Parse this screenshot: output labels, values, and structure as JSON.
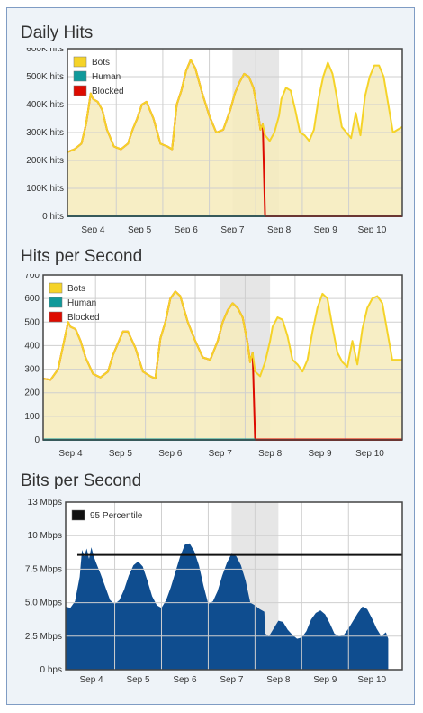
{
  "charts": [
    {
      "title": "Daily Hits"
    },
    {
      "title": "Hits per Second"
    },
    {
      "title": "Bits per Second"
    }
  ],
  "colors": {
    "panel_bg": "#eef3f8",
    "panel_border": "#7f9cc4",
    "plot_bg": "#ffffff",
    "fill_cream": "#f6ebbb",
    "shade": "#e6e6e6",
    "bots": "#f5d328",
    "human": "#10999a",
    "blocked": "#dd0b00",
    "bandwidth": "#0f4d8f",
    "percentile": "#111111"
  },
  "chart_data": [
    {
      "type": "line",
      "title": "Daily Hits",
      "x_ticks": [
        "Sep 4",
        "Sep 5",
        "Sep 6",
        "Sep 7",
        "Sep 8",
        "Sep 9",
        "Sep 10"
      ],
      "y_ticks": [
        "0 hits",
        "100K hits",
        "200K hits",
        "300K hits",
        "400K hits",
        "500K hits",
        "600K hits"
      ],
      "ylim": [
        0,
        600000
      ],
      "xlim": [
        3.45,
        10.65
      ],
      "shaded_range": [
        7.0,
        8.0
      ],
      "legend": [
        "Bots",
        "Human",
        "Blocked"
      ],
      "legend_position": "top-left",
      "grid": true,
      "series": [
        {
          "name": "Blocked",
          "color": "blocked",
          "x": [
            3.45,
            3.6,
            3.75,
            3.85,
            3.95,
            4.0,
            4.1,
            4.2,
            4.3,
            4.45,
            4.6,
            4.75,
            4.85,
            4.95,
            5.05,
            5.15,
            5.3,
            5.45,
            5.6,
            5.7,
            5.8,
            5.9,
            6.0,
            6.1,
            6.2,
            6.35,
            6.5,
            6.65,
            6.8,
            6.95,
            7.05,
            7.15,
            7.25,
            7.35,
            7.45,
            7.55,
            7.6,
            7.65,
            7.7
          ],
          "y": [
            230000,
            240000,
            260000,
            330000,
            440000,
            420000,
            410000,
            380000,
            310000,
            250000,
            240000,
            260000,
            310000,
            350000,
            400000,
            410000,
            350000,
            260000,
            250000,
            240000,
            400000,
            450000,
            520000,
            560000,
            530000,
            440000,
            360000,
            300000,
            310000,
            380000,
            440000,
            480000,
            510000,
            500000,
            460000,
            370000,
            310000,
            330000,
            0
          ]
        },
        {
          "name": "Bots",
          "color": "bots",
          "x": [
            3.45,
            3.6,
            3.75,
            3.85,
            3.95,
            4.0,
            4.1,
            4.2,
            4.3,
            4.45,
            4.6,
            4.75,
            4.85,
            4.95,
            5.05,
            5.15,
            5.3,
            5.45,
            5.6,
            5.7,
            5.8,
            5.9,
            6.0,
            6.1,
            6.2,
            6.35,
            6.5,
            6.65,
            6.8,
            6.95,
            7.05,
            7.15,
            7.25,
            7.35,
            7.45,
            7.55,
            7.6,
            7.65,
            7.7,
            7.8,
            7.9,
            8.0,
            8.05,
            8.15,
            8.25,
            8.35,
            8.45,
            8.55,
            8.65,
            8.75,
            8.85,
            8.95,
            9.05,
            9.15,
            9.25,
            9.35,
            9.45,
            9.55,
            9.65,
            9.75,
            9.85,
            9.95,
            10.05,
            10.15,
            10.25,
            10.35,
            10.45,
            10.55,
            10.65
          ],
          "y": [
            230000,
            240000,
            260000,
            330000,
            440000,
            420000,
            410000,
            380000,
            310000,
            250000,
            240000,
            260000,
            310000,
            350000,
            400000,
            410000,
            350000,
            260000,
            250000,
            240000,
            400000,
            450000,
            520000,
            560000,
            530000,
            440000,
            360000,
            300000,
            310000,
            380000,
            440000,
            480000,
            510000,
            500000,
            460000,
            370000,
            310000,
            330000,
            290000,
            270000,
            300000,
            360000,
            420000,
            460000,
            450000,
            380000,
            300000,
            290000,
            270000,
            310000,
            420000,
            500000,
            550000,
            510000,
            420000,
            320000,
            300000,
            280000,
            370000,
            290000,
            430000,
            500000,
            540000,
            540000,
            500000,
            400000,
            300000,
            310000,
            320000
          ]
        },
        {
          "name": "Human",
          "color": "human",
          "x": [
            3.45,
            7.7
          ],
          "y": [
            1000,
            1000
          ]
        },
        {
          "name": "Blocked",
          "color": "blocked",
          "x": [
            7.7,
            10.65
          ],
          "y": [
            1000,
            1000
          ]
        }
      ]
    },
    {
      "type": "line",
      "title": "Hits per Second",
      "x_ticks": [
        "Sep 4",
        "Sep 5",
        "Sep 6",
        "Sep 7",
        "Sep 8",
        "Sep 9",
        "Sep 10"
      ],
      "y_ticks": [
        "0",
        "100",
        "200",
        "300",
        "400",
        "500",
        "600",
        "700"
      ],
      "ylim": [
        0,
        700
      ],
      "xlim": [
        3.45,
        10.65
      ],
      "shaded_range": [
        7.0,
        8.0
      ],
      "legend": [
        "Bots",
        "Human",
        "Blocked"
      ],
      "legend_position": "top-left",
      "grid": true,
      "series": [
        {
          "name": "Blocked",
          "color": "blocked",
          "x": [
            3.45,
            3.6,
            3.75,
            3.85,
            3.95,
            4.0,
            4.1,
            4.2,
            4.3,
            4.45,
            4.6,
            4.75,
            4.85,
            4.95,
            5.05,
            5.15,
            5.3,
            5.45,
            5.6,
            5.7,
            5.8,
            5.9,
            6.0,
            6.1,
            6.2,
            6.35,
            6.5,
            6.65,
            6.8,
            6.95,
            7.05,
            7.15,
            7.25,
            7.35,
            7.45,
            7.55,
            7.6,
            7.65,
            7.7
          ],
          "y": [
            260,
            255,
            300,
            400,
            500,
            480,
            470,
            420,
            350,
            280,
            265,
            290,
            360,
            410,
            460,
            460,
            390,
            290,
            270,
            260,
            430,
            500,
            600,
            630,
            610,
            500,
            420,
            350,
            340,
            420,
            500,
            550,
            580,
            560,
            520,
            410,
            330,
            370,
            0
          ]
        },
        {
          "name": "Bots",
          "color": "bots",
          "x": [
            3.45,
            3.6,
            3.75,
            3.85,
            3.95,
            4.0,
            4.1,
            4.2,
            4.3,
            4.45,
            4.6,
            4.75,
            4.85,
            4.95,
            5.05,
            5.15,
            5.3,
            5.45,
            5.6,
            5.7,
            5.8,
            5.9,
            6.0,
            6.1,
            6.2,
            6.35,
            6.5,
            6.65,
            6.8,
            6.95,
            7.05,
            7.15,
            7.25,
            7.35,
            7.45,
            7.55,
            7.6,
            7.65,
            7.7,
            7.8,
            7.9,
            8.0,
            8.05,
            8.15,
            8.25,
            8.35,
            8.45,
            8.55,
            8.65,
            8.75,
            8.85,
            8.95,
            9.05,
            9.15,
            9.25,
            9.35,
            9.45,
            9.55,
            9.65,
            9.75,
            9.85,
            9.95,
            10.05,
            10.15,
            10.25,
            10.35,
            10.45,
            10.55,
            10.65
          ],
          "y": [
            260,
            255,
            300,
            400,
            500,
            480,
            470,
            420,
            350,
            280,
            265,
            290,
            360,
            410,
            460,
            460,
            390,
            290,
            270,
            260,
            430,
            500,
            600,
            630,
            610,
            500,
            420,
            350,
            340,
            420,
            500,
            550,
            580,
            560,
            520,
            410,
            330,
            370,
            290,
            270,
            330,
            420,
            480,
            520,
            510,
            440,
            340,
            320,
            290,
            340,
            460,
            560,
            620,
            600,
            480,
            370,
            330,
            310,
            420,
            320,
            470,
            560,
            600,
            610,
            580,
            460,
            340,
            340,
            340
          ]
        },
        {
          "name": "Human",
          "color": "human",
          "x": [
            3.45,
            7.7
          ],
          "y": [
            1,
            1
          ]
        },
        {
          "name": "Blocked",
          "color": "blocked",
          "x": [
            7.7,
            10.65
          ],
          "y": [
            1,
            1
          ]
        }
      ]
    },
    {
      "type": "area",
      "title": "Bits per Second",
      "x_ticks": [
        "Sep 4",
        "Sep 5",
        "Sep 6",
        "Sep 7",
        "Sep 8",
        "Sep 9",
        "Sep 10"
      ],
      "y_ticks": [
        "0 bps",
        "2.5 Mbps",
        "5.0 Mbps",
        "7.5 Mbps",
        "10 Mbps",
        "13 Mbps"
      ],
      "ylim": [
        0,
        13
      ],
      "xlim": [
        3.45,
        10.65
      ],
      "shaded_range": [
        7.0,
        8.0
      ],
      "legend": [
        "95 Percentile"
      ],
      "legend_position": "top-left",
      "grid": true,
      "series": [
        {
          "name": "95 Percentile",
          "color": "percentile",
          "x": [
            3.7,
            10.65
          ],
          "y": [
            8.9,
            8.9
          ]
        },
        {
          "color": "bandwidth",
          "x": [
            3.45,
            3.55,
            3.65,
            3.75,
            3.8,
            3.85,
            3.9,
            3.95,
            4.0,
            4.05,
            4.1,
            4.2,
            4.3,
            4.4,
            4.5,
            4.6,
            4.7,
            4.8,
            4.9,
            5.0,
            5.1,
            5.2,
            5.3,
            5.4,
            5.5,
            5.6,
            5.7,
            5.8,
            5.9,
            6.0,
            6.1,
            6.2,
            6.3,
            6.4,
            6.5,
            6.6,
            6.7,
            6.8,
            6.9,
            7.0,
            7.1,
            7.2,
            7.3,
            7.4,
            7.5,
            7.6,
            7.7,
            7.72,
            7.8,
            7.9,
            8.0,
            8.1,
            8.2,
            8.3,
            8.4,
            8.5,
            8.6,
            8.7,
            8.8,
            8.9,
            9.0,
            9.1,
            9.2,
            9.3,
            9.4,
            9.5,
            9.6,
            9.7,
            9.8,
            9.9,
            10.0,
            10.1,
            10.2,
            10.3,
            10.35
          ],
          "y": [
            4.9,
            4.8,
            5.3,
            7.2,
            9.3,
            8.8,
            9.4,
            8.6,
            9.5,
            8.8,
            8.3,
            7.4,
            6.4,
            5.4,
            5.1,
            5.4,
            6.2,
            7.3,
            8.1,
            8.4,
            8.0,
            6.9,
            5.7,
            5.0,
            4.8,
            5.4,
            6.4,
            7.6,
            8.8,
            9.7,
            9.8,
            9.2,
            8.1,
            6.5,
            5.1,
            5.3,
            6.1,
            7.3,
            8.3,
            9.0,
            8.8,
            8.1,
            6.9,
            5.2,
            5.0,
            4.7,
            4.5,
            2.8,
            2.6,
            3.2,
            3.8,
            3.7,
            3.1,
            2.7,
            2.4,
            2.5,
            3.0,
            3.9,
            4.4,
            4.6,
            4.3,
            3.6,
            2.8,
            2.6,
            2.7,
            3.2,
            3.8,
            4.4,
            4.9,
            4.7,
            4.0,
            3.2,
            2.6,
            2.9,
            2.4
          ]
        }
      ]
    }
  ]
}
